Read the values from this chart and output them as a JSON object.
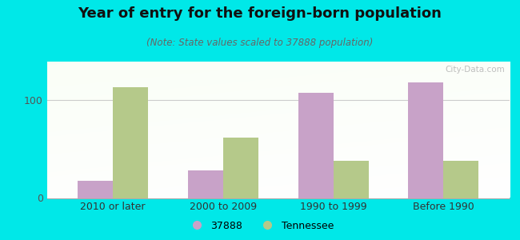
{
  "title": "Year of entry for the foreign-born population",
  "subtitle": "(Note: State values scaled to 37888 population)",
  "categories": [
    "2010 or later",
    "2000 to 2009",
    "1990 to 1999",
    "Before 1990"
  ],
  "values_37888": [
    18,
    28,
    108,
    118
  ],
  "values_tennessee": [
    113,
    62,
    38,
    38
  ],
  "color_37888": "#c8a2c8",
  "color_tennessee": "#b5c98a",
  "legend_labels": [
    "37888",
    "Tennessee"
  ],
  "background_outer": "#00e8e8",
  "ylim": [
    0,
    140
  ],
  "yticks": [
    0,
    100
  ],
  "bar_width": 0.32,
  "watermark": "City-Data.com"
}
